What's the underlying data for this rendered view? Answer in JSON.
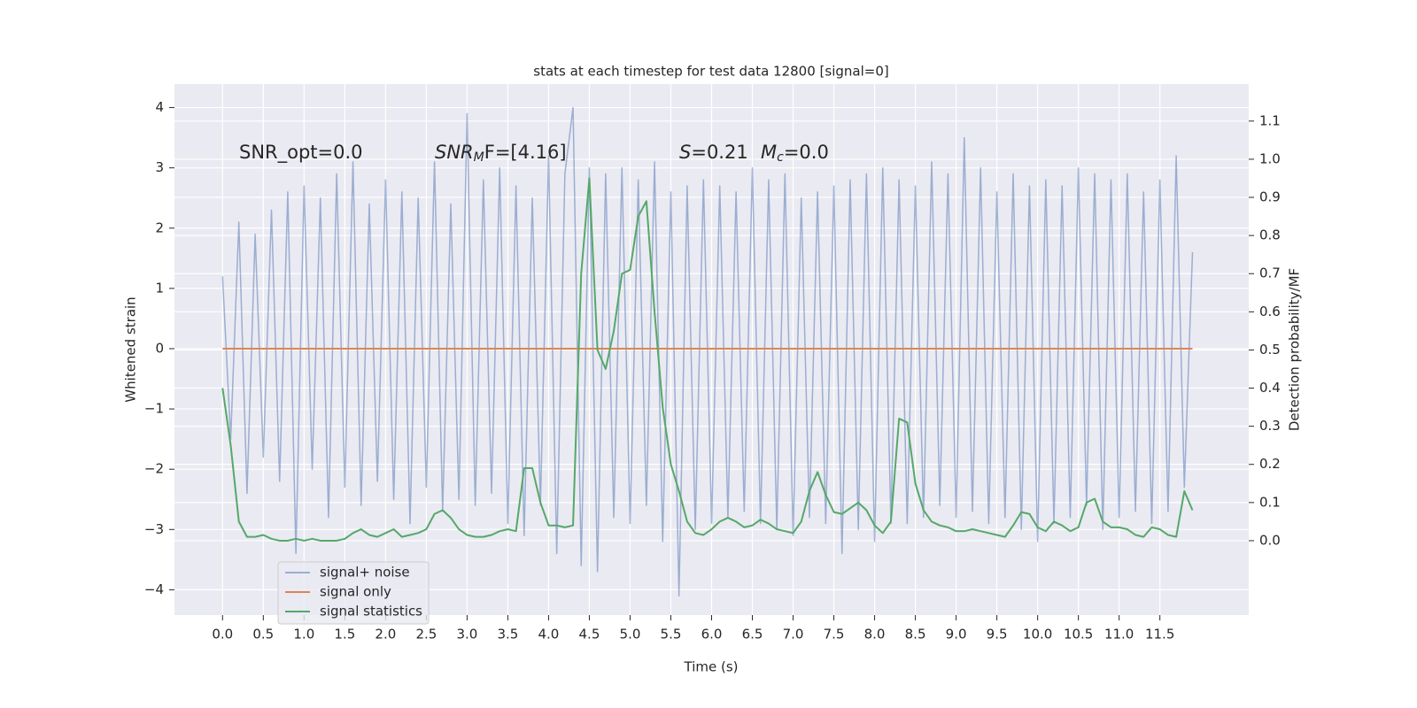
{
  "chart_data": {
    "type": "line",
    "title": "stats at each timestep for test data 12800 [signal=0]",
    "xlabel": "Time (s)",
    "ylabel": "Whitened strain",
    "y2label": "Detection probability/MF",
    "annotations": [
      {
        "text": "SNR_opt=0.0"
      },
      {
        "base": "SNR",
        "sub": "M",
        "tail": "F=[4.16]"
      },
      {
        "base": "S",
        "tail": "=0.21"
      },
      {
        "base": "M",
        "sub": "c",
        "tail": "=0.0"
      }
    ],
    "legend": "lower left",
    "grid": true,
    "xlim": [
      -0.59,
      12.59
    ],
    "ylim": [
      -4.42,
      4.39
    ],
    "y2lim": [
      -0.195,
      1.197
    ],
    "xticks": [
      {
        "value": 0,
        "label": "0.0"
      },
      0.5,
      {
        "value": 1,
        "label": "1.0"
      },
      1.5,
      {
        "value": 2,
        "label": "2.0"
      },
      2.5,
      {
        "value": 3,
        "label": "3.0"
      },
      3.5,
      {
        "value": 4,
        "label": "4.0"
      },
      4.5,
      {
        "value": 5,
        "label": "5.0"
      },
      5.5,
      {
        "value": 6,
        "label": "6.0"
      },
      6.5,
      {
        "value": 7,
        "label": "7.0"
      },
      7.5,
      {
        "value": 8,
        "label": "8.0"
      },
      8.5,
      {
        "value": 9,
        "label": "9.0"
      },
      9.5,
      {
        "value": 10,
        "label": "10.0"
      },
      10.5,
      {
        "value": 11,
        "label": "11.0"
      },
      11.5
    ],
    "yticks": [
      {
        "value": -4,
        "label": "−4"
      },
      {
        "value": -3,
        "label": "−3"
      },
      {
        "value": -2,
        "label": "−2"
      },
      {
        "value": -1,
        "label": "−1"
      },
      0,
      1,
      2,
      3,
      4
    ],
    "y2ticks": [
      {
        "value": 0,
        "label": "0.0"
      },
      0.1,
      0.2,
      0.3,
      0.4,
      0.5,
      0.6,
      0.7,
      0.8,
      0.9,
      {
        "value": 1,
        "label": "1.0"
      },
      1.1
    ],
    "x": [
      0,
      0.1,
      0.2,
      0.3,
      0.4,
      0.5,
      0.6,
      0.7,
      0.8,
      0.9,
      1,
      1.1,
      1.2,
      1.3,
      1.4,
      1.5,
      1.6,
      1.7,
      1.8,
      1.9,
      2,
      2.1,
      2.2,
      2.3,
      2.4,
      2.5,
      2.6,
      2.7,
      2.8,
      2.9,
      3,
      3.1,
      3.2,
      3.3,
      3.4,
      3.5,
      3.6,
      3.7,
      3.8,
      3.9,
      4,
      4.1,
      4.2,
      4.3,
      4.4,
      4.5,
      4.6,
      4.7,
      4.8,
      4.9,
      5,
      5.1,
      5.2,
      5.3,
      5.4,
      5.5,
      5.6,
      5.7,
      5.8,
      5.9,
      6,
      6.1,
      6.2,
      6.3,
      6.4,
      6.5,
      6.6,
      6.7,
      6.8,
      6.9,
      7,
      7.1,
      7.2,
      7.3,
      7.4,
      7.5,
      7.6,
      7.7,
      7.8,
      7.9,
      8,
      8.1,
      8.2,
      8.3,
      8.4,
      8.5,
      8.6,
      8.7,
      8.8,
      8.9,
      9,
      9.1,
      9.2,
      9.3,
      9.4,
      9.5,
      9.6,
      9.7,
      9.8,
      9.9,
      10,
      10.1,
      10.2,
      10.3,
      10.4,
      10.5,
      10.6,
      10.7,
      10.8,
      10.9,
      11,
      11.1,
      11.2,
      11.3,
      11.4,
      11.5,
      11.6,
      11.7,
      11.8,
      11.9
    ],
    "series": [
      {
        "name": "signal+ noise",
        "color": "#4c72b0",
        "opacity": 0.5,
        "values": [
          1.2,
          -1.5,
          2.1,
          -2.4,
          1.9,
          -1.8,
          2.3,
          -2.2,
          2.6,
          -3.4,
          2.7,
          -2.0,
          2.5,
          -2.8,
          2.9,
          -2.3,
          3.1,
          -2.6,
          2.4,
          -2.2,
          2.8,
          -2.5,
          2.6,
          -2.9,
          2.5,
          -2.3,
          3.1,
          -2.7,
          2.4,
          -2.5,
          3.9,
          -2.6,
          2.8,
          -2.4,
          3.0,
          -2.9,
          2.7,
          -3.1,
          2.5,
          -2.6,
          3.2,
          -3.4,
          2.9,
          4.0,
          -3.6,
          3.0,
          -3.7,
          2.9,
          -2.8,
          3.0,
          -2.9,
          2.8,
          -2.6,
          3.1,
          -3.2,
          2.6,
          -4.1,
          2.7,
          -3.0,
          2.8,
          -2.9,
          2.7,
          -2.8,
          2.6,
          -2.7,
          3.0,
          -2.9,
          2.8,
          -3.0,
          2.9,
          -3.1,
          2.5,
          -2.8,
          2.6,
          -2.9,
          2.7,
          -3.4,
          2.8,
          -3.0,
          2.9,
          -3.2,
          3.0,
          -2.9,
          2.8,
          -2.9,
          2.7,
          -2.8,
          3.1,
          -2.6,
          2.9,
          -2.8,
          3.5,
          -2.7,
          3.0,
          -2.9,
          2.6,
          -2.8,
          2.9,
          -3.0,
          2.7,
          -3.2,
          2.8,
          -2.9,
          2.7,
          -2.8,
          3.0,
          -2.6,
          2.9,
          -3.0,
          2.8,
          -2.8,
          2.9,
          -2.7,
          2.6,
          -2.9,
          2.8,
          -2.7,
          3.2,
          -2.3,
          1.6
        ]
      },
      {
        "name": "signal only",
        "color": "#dd8452",
        "opacity": 1,
        "values": [
          0,
          0,
          0,
          0,
          0,
          0,
          0,
          0,
          0,
          0,
          0,
          0,
          0,
          0,
          0,
          0,
          0,
          0,
          0,
          0,
          0,
          0,
          0,
          0,
          0,
          0,
          0,
          0,
          0,
          0,
          0,
          0,
          0,
          0,
          0,
          0,
          0,
          0,
          0,
          0,
          0,
          0,
          0,
          0,
          0,
          0,
          0,
          0,
          0,
          0,
          0,
          0,
          0,
          0,
          0,
          0,
          0,
          0,
          0,
          0,
          0,
          0,
          0,
          0,
          0,
          0,
          0,
          0,
          0,
          0,
          0,
          0,
          0,
          0,
          0,
          0,
          0,
          0,
          0,
          0,
          0,
          0,
          0,
          0,
          0,
          0,
          0,
          0,
          0,
          0,
          0,
          0,
          0,
          0,
          0,
          0,
          0,
          0,
          0,
          0,
          0,
          0,
          0,
          0,
          0,
          0,
          0,
          0,
          0,
          0,
          0,
          0,
          0,
          0,
          0,
          0,
          0,
          0,
          0,
          0
        ]
      },
      {
        "name": "signal statistics",
        "color": "#55a868",
        "opacity": 1,
        "axis": "y2",
        "values": [
          0.4,
          0.25,
          0.05,
          0.01,
          0.01,
          0.015,
          0.005,
          0.0,
          0.0,
          0.005,
          0.0,
          0.005,
          0.0,
          0.0,
          0.0,
          0.005,
          0.02,
          0.03,
          0.015,
          0.01,
          0.02,
          0.03,
          0.01,
          0.015,
          0.02,
          0.03,
          0.07,
          0.08,
          0.06,
          0.03,
          0.015,
          0.01,
          0.01,
          0.015,
          0.025,
          0.03,
          0.025,
          0.19,
          0.19,
          0.1,
          0.04,
          0.04,
          0.035,
          0.04,
          0.7,
          0.95,
          0.5,
          0.45,
          0.55,
          0.7,
          0.71,
          0.85,
          0.89,
          0.6,
          0.35,
          0.2,
          0.13,
          0.05,
          0.02,
          0.015,
          0.03,
          0.05,
          0.06,
          0.05,
          0.035,
          0.04,
          0.055,
          0.045,
          0.03,
          0.025,
          0.02,
          0.05,
          0.13,
          0.18,
          0.12,
          0.075,
          0.07,
          0.085,
          0.1,
          0.08,
          0.04,
          0.02,
          0.05,
          0.32,
          0.31,
          0.15,
          0.08,
          0.05,
          0.04,
          0.035,
          0.025,
          0.025,
          0.03,
          0.025,
          0.02,
          0.015,
          0.01,
          0.04,
          0.075,
          0.07,
          0.035,
          0.025,
          0.05,
          0.04,
          0.025,
          0.035,
          0.1,
          0.11,
          0.05,
          0.035,
          0.035,
          0.03,
          0.015,
          0.01,
          0.035,
          0.03,
          0.015,
          0.01,
          0.13,
          0.08
        ]
      }
    ]
  }
}
